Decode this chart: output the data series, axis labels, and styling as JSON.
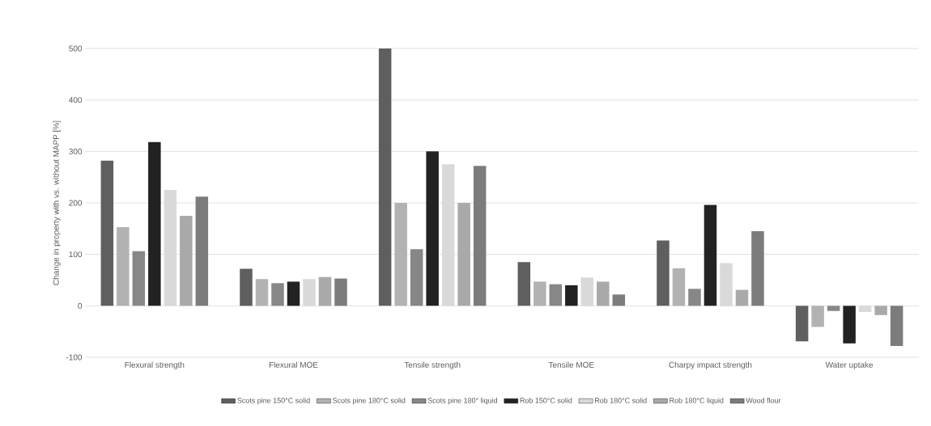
{
  "chart_data": {
    "type": "bar",
    "ylabel": "Change in property with vs. without MAPP [%]",
    "categories": [
      "Flexural strength",
      "Flexural MOE",
      "Tensile strength",
      "Tensile MOE",
      "Charpy impact strength",
      "Water uptake"
    ],
    "series": [
      {
        "name": "Scots pine 150°C solid",
        "color": "#5f5f5f",
        "values": [
          282,
          72,
          500,
          85,
          127,
          -69
        ]
      },
      {
        "name": "Scots pine 180°C solid",
        "color": "#b2b2b2",
        "values": [
          153,
          52,
          200,
          47,
          73,
          -41
        ]
      },
      {
        "name": "Scots pine 180° liquid",
        "color": "#878787",
        "values": [
          106,
          44,
          110,
          42,
          33,
          -10
        ]
      },
      {
        "name": "Rob 150°C solid",
        "color": "#222222",
        "values": [
          318,
          47,
          300,
          40,
          196,
          -73
        ]
      },
      {
        "name": "Rob 180°C solid",
        "color": "#d9d9d9",
        "values": [
          225,
          52,
          275,
          55,
          83,
          -12
        ]
      },
      {
        "name": "Rob 180°C liquid",
        "color": "#a9a9a9",
        "values": [
          175,
          56,
          200,
          47,
          31,
          -18
        ]
      },
      {
        "name": "Wood flour",
        "color": "#7c7c7c",
        "values": [
          212,
          53,
          272,
          22,
          145,
          -78
        ]
      }
    ],
    "ylim": [
      -100,
      500
    ],
    "yticks": [
      -100,
      0,
      100,
      200,
      300,
      400,
      500
    ],
    "grid": "y",
    "legend": "bottom"
  }
}
